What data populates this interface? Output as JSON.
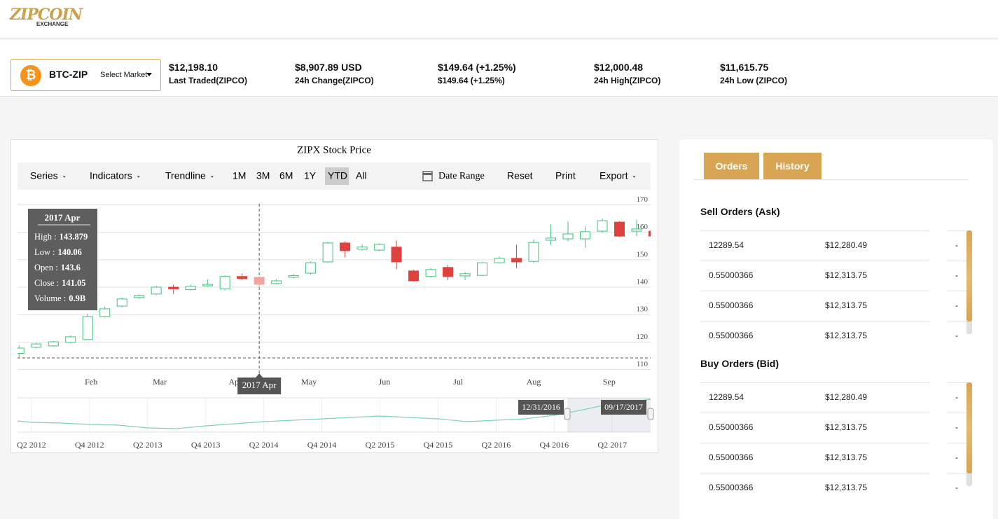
{
  "header": {
    "logo": "ZIPCOIN",
    "logo_sub": "EXCHANGE"
  },
  "market": {
    "pair": "BTC-ZIP",
    "select": "Select Market"
  },
  "ticker": [
    {
      "value": "$12,198.10",
      "label": "Last Traded(ZIPCO)"
    },
    {
      "value": "$8,907.89 USD",
      "label": "24h Change(ZIPCO)"
    },
    {
      "value": "$149.64 (+1.25%)",
      "label": "$149.64 (+1.25%)"
    },
    {
      "value": "$12,000.48",
      "label": "24h High(ZIPCO)"
    },
    {
      "value": "$11,615.75",
      "label": "24h Low (ZIPCO)"
    }
  ],
  "toolbar": {
    "menus": [
      "Series",
      "Indicators",
      "Trendline"
    ],
    "ranges": [
      "1M",
      "3M",
      "6M",
      "1Y",
      "YTD",
      "All"
    ],
    "selected_range": 4,
    "date_range": "Date Range",
    "buttons": [
      "Reset",
      "Print"
    ],
    "export": "Export"
  },
  "chart_data": {
    "type": "candlestick",
    "title": "ZIPX Stock Price",
    "open": [
      115.9,
      118.1,
      118.6,
      119.9,
      120.9,
      129.3,
      133.1,
      136.2,
      137.5,
      140,
      139.1,
      140.5,
      139.4,
      143.9,
      143.6,
      141.3,
      143.6,
      145.1,
      149.2,
      156.1,
      153.8,
      153.5,
      154.6,
      145.9,
      143.9,
      147.2,
      144.1,
      144.3,
      148.9,
      150.5,
      149.4,
      157.1,
      157.6,
      157.6,
      160.4,
      163.7,
      160.4,
      160.4
    ],
    "high": [
      118.8,
      119.7,
      120.4,
      122.4,
      130.4,
      132.9,
      136.2,
      137.4,
      140.5,
      140.9,
      140.9,
      142.8,
      144.4,
      145.1,
      143.879,
      142.9,
      144.8,
      149.4,
      156.5,
      156.7,
      155.5,
      156,
      157,
      146.3,
      146.9,
      148.1,
      145.5,
      149.1,
      151.2,
      155.5,
      157.3,
      162.8,
      163.9,
      162.1,
      165,
      164,
      164.6,
      160.9
    ],
    "low": [
      114.5,
      117.7,
      118.3,
      119.5,
      120.7,
      128.9,
      132.7,
      135.7,
      137.1,
      137.5,
      138.8,
      140.2,
      138.9,
      142.5,
      140.06,
      140.9,
      143.2,
      144.5,
      148.9,
      150.9,
      153.3,
      153.1,
      146.5,
      142.1,
      143.5,
      142.5,
      142.6,
      144.1,
      148.6,
      146.9,
      148.8,
      155.3,
      156.7,
      154.5,
      159.8,
      158.3,
      158.6,
      157.9
    ],
    "close": [
      117.8,
      119.3,
      120.1,
      121.9,
      129.3,
      132.1,
      135.7,
      137,
      140,
      139.4,
      140.3,
      141,
      143.9,
      143.1,
      141.05,
      142.3,
      144.2,
      148.9,
      156.1,
      153.3,
      154.6,
      155.6,
      149.2,
      142.3,
      146.4,
      143.9,
      144.9,
      148.9,
      150.5,
      149.2,
      156.3,
      157.9,
      159.4,
      160.2,
      164.2,
      158.6,
      161.2,
      158.6
    ],
    "up_color": "#3cc47c",
    "down_color": "#e0413c",
    "grid": true,
    "xlim": [
      -0.5,
      37.5
    ],
    "xticks": [
      {
        "value": 4.2,
        "label": "Feb"
      },
      {
        "value": 8.2,
        "label": "Mar"
      },
      {
        "value": 12.6,
        "label": "Apr"
      },
      {
        "value": 16.9,
        "label": "May"
      },
      {
        "value": 21.3,
        "label": "Jun"
      },
      {
        "value": 25.6,
        "label": "Jul"
      },
      {
        "value": 30,
        "label": "Aug"
      },
      {
        "value": 34.4,
        "label": "Sep"
      }
    ],
    "ylim": [
      109,
      172
    ],
    "yticks": [
      110,
      120,
      130,
      140,
      150,
      160,
      170
    ],
    "tooltip": {
      "index": 14,
      "title": "2017 Apr",
      "labels": [
        "High :",
        "Low :",
        "Open :",
        "Close :",
        "Volume :"
      ],
      "volume": "0.9B"
    },
    "crosshair_label": "2017 Apr",
    "navigator": {
      "x": [
        2012.13,
        2012.25,
        2012.5,
        2012.75,
        2013,
        2013.25,
        2013.5,
        2013.75,
        2014,
        2014.25,
        2014.5,
        2014.75,
        2015,
        2015.25,
        2015.5,
        2015.75,
        2016,
        2016.25,
        2016.5,
        2016.75,
        2017,
        2017.25,
        2017.5,
        2017.58
      ],
      "values": [
        16,
        14,
        13,
        11,
        10,
        6,
        5,
        9,
        12,
        15,
        17,
        19,
        21,
        23,
        21,
        19,
        15,
        17,
        19,
        24,
        32,
        41,
        45,
        47
      ],
      "color": "#7fd3b4",
      "xlim": [
        2012.13,
        2017.58
      ],
      "ylim": [
        0,
        49
      ],
      "xticks": [
        {
          "value": 2012.25,
          "label": "Q2 2012"
        },
        {
          "value": 2012.75,
          "label": "Q4 2012"
        },
        {
          "value": 2013.25,
          "label": "Q2 2013"
        },
        {
          "value": 2013.75,
          "label": "Q4 2013"
        },
        {
          "value": 2014.25,
          "label": "Q2 2014"
        },
        {
          "value": 2014.75,
          "label": "Q4 2014"
        },
        {
          "value": 2015.25,
          "label": "Q2 2015"
        },
        {
          "value": 2015.75,
          "label": "Q4 2015"
        },
        {
          "value": 2016.25,
          "label": "Q2 2016"
        },
        {
          "value": 2016.75,
          "label": "Q4 2016"
        },
        {
          "value": 2017.25,
          "label": "Q2 2017"
        }
      ],
      "range_labels": [
        "12/31/2016",
        "09/17/2017"
      ]
    }
  },
  "orders": {
    "tabs": [
      "Orders",
      "History"
    ],
    "sell": {
      "title": "Sell Orders (Ask)",
      "rows": [
        [
          "12289.54",
          "$12,280.49",
          "-"
        ],
        [
          "0.55000366",
          "$12,313.75",
          "-"
        ],
        [
          "0.55000366",
          "$12,313.75",
          "-"
        ],
        [
          "0.55000366",
          "$12,313.75",
          "-"
        ]
      ]
    },
    "buy": {
      "title": "Buy Orders (Bid)",
      "rows": [
        [
          "12289.54",
          "$12,280.49",
          "-"
        ],
        [
          "0.55000366",
          "$12,313.75",
          "-"
        ],
        [
          "0.55000366",
          "$12,313.75",
          "-"
        ],
        [
          "0.55000366",
          "$12,313.75",
          "-"
        ]
      ]
    }
  }
}
